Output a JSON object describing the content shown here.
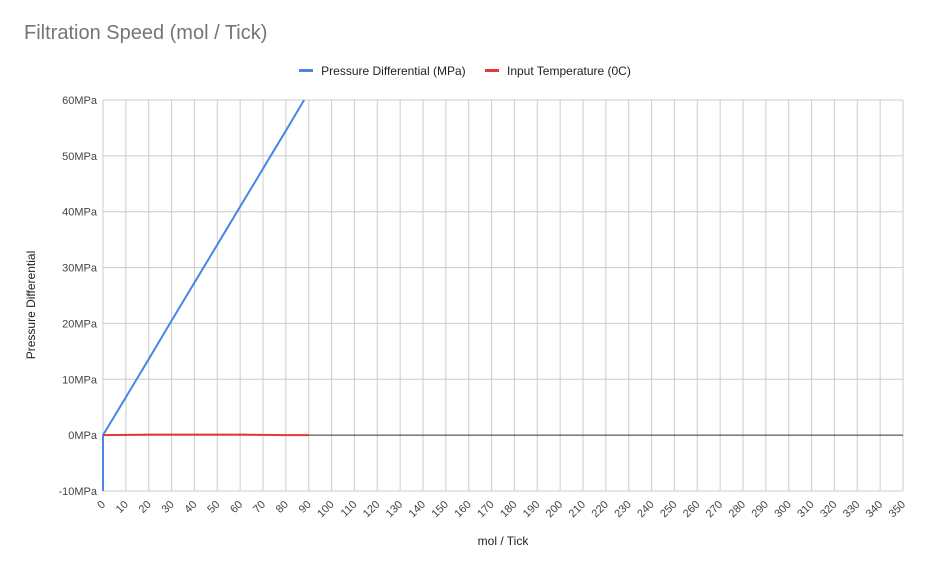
{
  "chart_data": {
    "type": "line",
    "title": "Filtration Speed (mol / Tick)",
    "xlabel": "mol / Tick",
    "ylabel": "Pressure Differential",
    "xlim": [
      0,
      350
    ],
    "ylim": [
      -10,
      60
    ],
    "x_ticks": [
      "0",
      "10",
      "20",
      "30",
      "40",
      "50",
      "60",
      "70",
      "80",
      "90",
      "100",
      "110",
      "120",
      "130",
      "140",
      "150",
      "160",
      "170",
      "180",
      "190",
      "200",
      "210",
      "220",
      "230",
      "240",
      "250",
      "260",
      "270",
      "280",
      "290",
      "300",
      "310",
      "320",
      "330",
      "340",
      "350"
    ],
    "y_ticks": [
      "60MPa",
      "50MPa",
      "40MPa",
      "30MPa",
      "20MPa",
      "10MPa",
      "0MPa",
      "-10MPa"
    ],
    "y_tick_values": [
      60,
      50,
      40,
      30,
      20,
      10,
      0,
      -10
    ],
    "grid": true,
    "legend_position": "top-center",
    "series": [
      {
        "name": "Pressure Differential (MPa)",
        "color": "#4a86e8",
        "x": [
          0,
          0,
          10,
          20,
          30,
          40,
          50,
          60,
          70,
          80,
          88
        ],
        "y": [
          -10,
          0,
          6.8,
          13.6,
          20.5,
          27.3,
          34.1,
          40.9,
          47.7,
          54.5,
          60
        ]
      },
      {
        "name": "Input Temperature (0C)",
        "color": "#e53935",
        "x": [
          0,
          10,
          20,
          30,
          40,
          50,
          60,
          70,
          80,
          90
        ],
        "y": [
          0,
          0.05,
          0.1,
          0.1,
          0.1,
          0.1,
          0.1,
          0.05,
          0,
          0
        ]
      }
    ]
  }
}
